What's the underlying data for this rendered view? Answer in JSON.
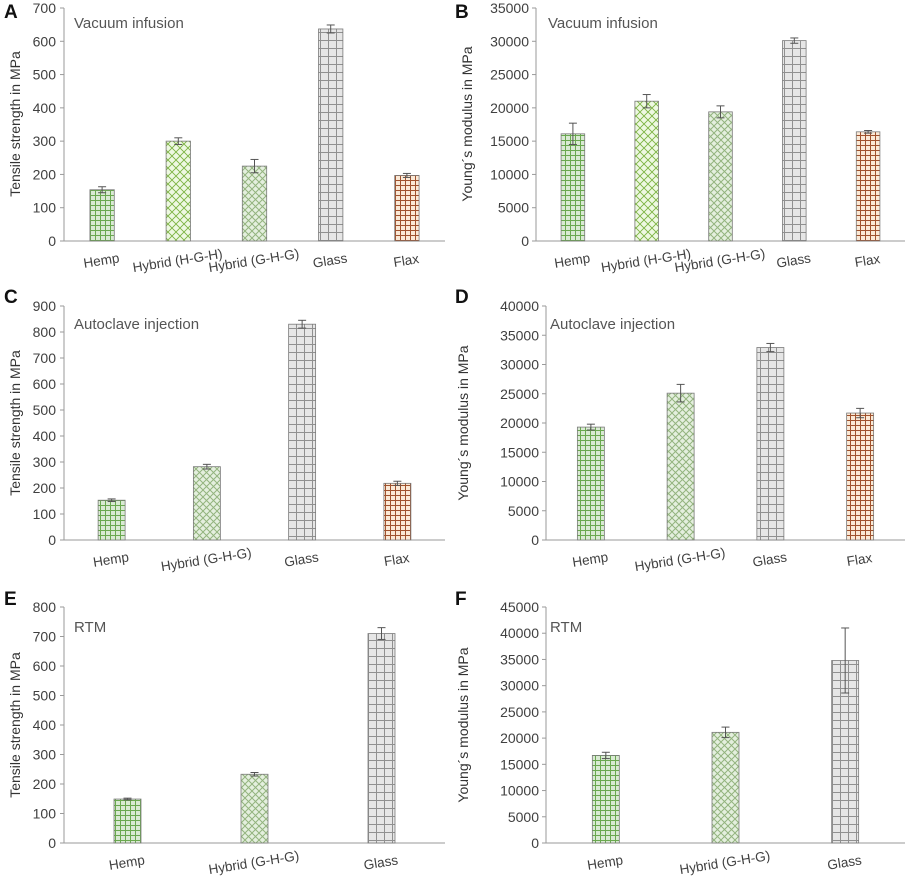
{
  "chart_data": [
    {
      "panel": "A",
      "type": "bar",
      "title": "Vacuum infusion",
      "ylabel": "Tensile strength in MPa",
      "ylim": [
        0,
        700
      ],
      "yticks": [
        0,
        100,
        200,
        300,
        400,
        500,
        600,
        700
      ],
      "categories": [
        "Hemp",
        "Hybrid (H-G-H)",
        "Hybrid (G-H-G)",
        "Glass",
        "Flax"
      ],
      "values": [
        154,
        300,
        225,
        637,
        197
      ],
      "errors": [
        9,
        10,
        20,
        12,
        6
      ],
      "patterns": [
        "hemp",
        "hybrid-hgh",
        "hybrid-ghg",
        "glass",
        "flax"
      ]
    },
    {
      "panel": "B",
      "type": "bar",
      "title": "Vacuum infusion",
      "ylabel": "Young´s modulus in MPa",
      "ylim": [
        0,
        35000
      ],
      "yticks": [
        0,
        5000,
        10000,
        15000,
        20000,
        25000,
        30000,
        35000
      ],
      "categories": [
        "Hemp",
        "Hybrid (H-G-H)",
        "Hybrid (G-H-G)",
        "Glass",
        "Flax"
      ],
      "values": [
        16100,
        21000,
        19400,
        30100,
        16400
      ],
      "errors": [
        1600,
        1000,
        900,
        400,
        200
      ],
      "patterns": [
        "hemp",
        "hybrid-hgh",
        "hybrid-ghg",
        "glass",
        "flax"
      ]
    },
    {
      "panel": "C",
      "type": "bar",
      "title": "Autoclave injection",
      "ylabel": "Tensile strength in MPa",
      "ylim": [
        0,
        900
      ],
      "yticks": [
        0,
        100,
        200,
        300,
        400,
        500,
        600,
        700,
        800,
        900
      ],
      "categories": [
        "Hemp",
        "Hybrid (G-H-G)",
        "Glass",
        "Flax"
      ],
      "values": [
        153,
        282,
        830,
        218
      ],
      "errors": [
        5,
        9,
        15,
        8
      ],
      "patterns": [
        "hemp",
        "hybrid-ghg",
        "glass",
        "flax"
      ]
    },
    {
      "panel": "D",
      "type": "bar",
      "title": "Autoclave injection",
      "ylabel": "Young´s modulus in MPa",
      "ylim": [
        0,
        40000
      ],
      "yticks": [
        0,
        5000,
        10000,
        15000,
        20000,
        25000,
        30000,
        35000,
        40000
      ],
      "categories": [
        "Hemp",
        "Hybrid (G-H-G)",
        "Glass",
        "Flax"
      ],
      "values": [
        19300,
        25100,
        32900,
        21700
      ],
      "errors": [
        500,
        1500,
        700,
        800
      ],
      "patterns": [
        "hemp",
        "hybrid-ghg",
        "glass",
        "flax"
      ]
    },
    {
      "panel": "E",
      "type": "bar",
      "title": "RTM",
      "ylabel": "Tensile strength in MPa",
      "ylim": [
        0,
        800
      ],
      "yticks": [
        0,
        100,
        200,
        300,
        400,
        500,
        600,
        700,
        800
      ],
      "categories": [
        "Hemp",
        "Hybrid (G-H-G)",
        "Glass"
      ],
      "values": [
        149,
        233,
        710
      ],
      "errors": [
        3,
        6,
        20
      ],
      "patterns": [
        "hemp",
        "hybrid-ghg",
        "glass"
      ]
    },
    {
      "panel": "F",
      "type": "bar",
      "title": "RTM",
      "ylabel": "Young´s modulus in MPa",
      "ylim": [
        0,
        45000
      ],
      "yticks": [
        0,
        5000,
        10000,
        15000,
        20000,
        25000,
        30000,
        35000,
        40000,
        45000
      ],
      "categories": [
        "Hemp",
        "Hybrid (G-H-G)",
        "Glass"
      ],
      "values": [
        16700,
        21100,
        34800
      ],
      "errors": [
        600,
        1000,
        6200
      ],
      "patterns": [
        "hemp",
        "hybrid-ghg",
        "glass"
      ]
    }
  ],
  "colors": {
    "axis": "#9a9a9a",
    "text": "#404040",
    "error_bar": "#555555",
    "hemp_fill": "#d9ead3",
    "hemp_line": "#6aa84f",
    "hybrid_hgh_fill": "#eef8e2",
    "hybrid_hgh_line": "#7cb342",
    "hybrid_ghg_fill": "#e4efde",
    "hybrid_ghg_line": "#93b47e",
    "glass_fill": "#e6e6e6",
    "glass_line": "#909090",
    "flax_fill": "#fbe9d6",
    "flax_line": "#a0522d"
  }
}
